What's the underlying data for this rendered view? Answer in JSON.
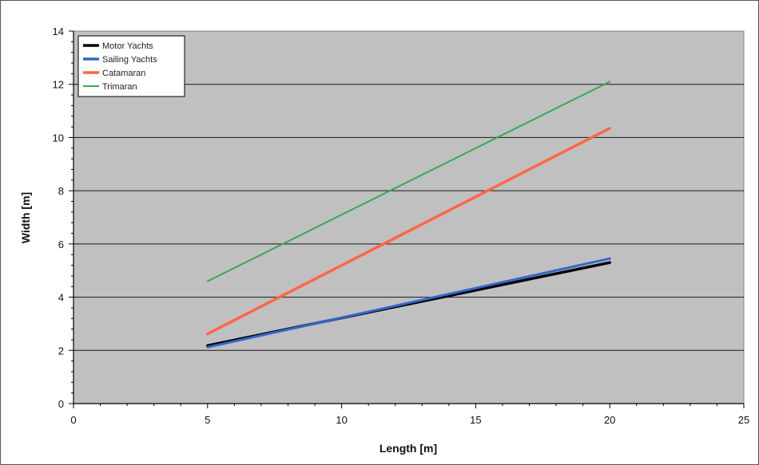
{
  "chart_data": {
    "type": "line",
    "title": "",
    "xlabel": "Length [m]",
    "ylabel": "Width [m]",
    "xlim": [
      0,
      25
    ],
    "ylim": [
      0,
      14
    ],
    "xticks": [
      0,
      5,
      10,
      15,
      20,
      25
    ],
    "yticks": [
      0,
      2,
      4,
      6,
      8,
      10,
      12,
      14
    ],
    "grid": "horizontal",
    "legend_position": "top-left",
    "plot_background": "#c0c0c0",
    "series": [
      {
        "name": "Motor Yachts",
        "color": "#000000",
        "x": [
          5,
          20
        ],
        "y": [
          2.18,
          5.3
        ]
      },
      {
        "name": "Sailing Yachts",
        "color": "#3366cc",
        "x": [
          5,
          20
        ],
        "y": [
          2.12,
          5.45
        ]
      },
      {
        "name": "Catamaran",
        "color": "#ff6644",
        "x": [
          5,
          20
        ],
        "y": [
          2.62,
          10.35
        ]
      },
      {
        "name": "Trimaran",
        "color": "#33aa55",
        "x": [
          5,
          20
        ],
        "y": [
          4.6,
          12.1
        ]
      }
    ]
  }
}
